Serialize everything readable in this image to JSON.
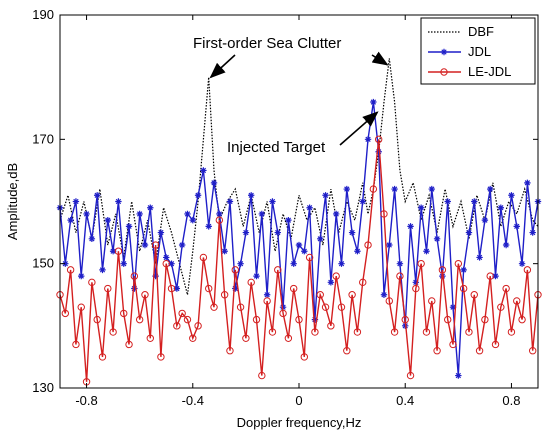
{
  "chart_data": {
    "type": "line",
    "xlabel": "Doppler frequency,Hz",
    "ylabel": "Amplitude,dB",
    "xlim": [
      -0.9,
      0.9
    ],
    "ylim": [
      130,
      190
    ],
    "xticks": [
      -0.8,
      -0.4,
      0,
      0.4,
      0.8
    ],
    "yticks": [
      130,
      150,
      170,
      190
    ],
    "xtick_labels": [
      "-0.8",
      "-0.4",
      "0",
      "0.4",
      "0.8"
    ],
    "ytick_labels": [
      "130",
      "150",
      "170",
      "190"
    ],
    "grid": false,
    "legend_position": "top-right",
    "annotations": [
      {
        "id": "sea-clutter",
        "text": "First-order Sea Clutter",
        "points_to": [
          [
            -0.34,
            179.5
          ],
          [
            0.34,
            182
          ]
        ]
      },
      {
        "id": "target",
        "text": "Injected Target",
        "points_to": [
          [
            0.28,
            175
          ]
        ]
      }
    ],
    "series": [
      {
        "name": "DBF",
        "color": "#000000",
        "style": "dotted",
        "x": [
          -0.9,
          -0.87,
          -0.84,
          -0.81,
          -0.78,
          -0.75,
          -0.72,
          -0.69,
          -0.66,
          -0.63,
          -0.6,
          -0.57,
          -0.54,
          -0.51,
          -0.48,
          -0.45,
          -0.42,
          -0.4,
          -0.38,
          -0.36,
          -0.34,
          -0.32,
          -0.3,
          -0.27,
          -0.24,
          -0.21,
          -0.18,
          -0.15,
          -0.12,
          -0.09,
          -0.06,
          -0.03,
          0.0,
          0.03,
          0.06,
          0.09,
          0.12,
          0.15,
          0.18,
          0.21,
          0.24,
          0.26,
          0.28,
          0.3,
          0.32,
          0.34,
          0.36,
          0.38,
          0.4,
          0.43,
          0.46,
          0.49,
          0.52,
          0.55,
          0.58,
          0.61,
          0.64,
          0.67,
          0.7,
          0.73,
          0.76,
          0.79,
          0.82,
          0.85,
          0.88,
          0.9
        ],
        "y": [
          157,
          161,
          155,
          160,
          154,
          162,
          153,
          158,
          151,
          160,
          152,
          157,
          150,
          159,
          155,
          150,
          145,
          152,
          160,
          170,
          180,
          165,
          157,
          160,
          162,
          156,
          161,
          155,
          160,
          152,
          158,
          154,
          161,
          157,
          159,
          153,
          162,
          155,
          160,
          157,
          163,
          158,
          162,
          168,
          176,
          183,
          176,
          165,
          160,
          163,
          157,
          161,
          155,
          162,
          156,
          160,
          154,
          161,
          157,
          163,
          156,
          160,
          158,
          162,
          157,
          156
        ]
      },
      {
        "name": "JDL",
        "color": "#1f1fc8",
        "style": "solid-star",
        "x": [
          -0.9,
          -0.88,
          -0.86,
          -0.84,
          -0.82,
          -0.8,
          -0.78,
          -0.76,
          -0.74,
          -0.72,
          -0.7,
          -0.68,
          -0.66,
          -0.64,
          -0.62,
          -0.6,
          -0.58,
          -0.56,
          -0.54,
          -0.52,
          -0.5,
          -0.48,
          -0.46,
          -0.44,
          -0.42,
          -0.4,
          -0.38,
          -0.36,
          -0.34,
          -0.32,
          -0.3,
          -0.28,
          -0.26,
          -0.24,
          -0.22,
          -0.2,
          -0.18,
          -0.16,
          -0.14,
          -0.12,
          -0.1,
          -0.08,
          -0.06,
          -0.04,
          -0.02,
          0.0,
          0.02,
          0.04,
          0.06,
          0.08,
          0.1,
          0.12,
          0.14,
          0.16,
          0.18,
          0.2,
          0.22,
          0.24,
          0.26,
          0.28,
          0.3,
          0.32,
          0.34,
          0.36,
          0.38,
          0.4,
          0.42,
          0.44,
          0.46,
          0.48,
          0.5,
          0.52,
          0.54,
          0.56,
          0.58,
          0.6,
          0.62,
          0.64,
          0.66,
          0.68,
          0.7,
          0.72,
          0.74,
          0.76,
          0.78,
          0.8,
          0.82,
          0.84,
          0.86,
          0.88,
          0.9
        ],
        "y": [
          159,
          150,
          157,
          160,
          148,
          158,
          154,
          161,
          149,
          157,
          152,
          160,
          150,
          156,
          146,
          158,
          153,
          159,
          148,
          155,
          151,
          150,
          146,
          153,
          158,
          157,
          161,
          165,
          156,
          163,
          158,
          152,
          160,
          146,
          150,
          155,
          161,
          148,
          158,
          145,
          160,
          155,
          143,
          157,
          150,
          153,
          152,
          159,
          141,
          154,
          161,
          147,
          158,
          150,
          162,
          155,
          152,
          160,
          170,
          176,
          168,
          145,
          153,
          162,
          150,
          140,
          156,
          147,
          159,
          152,
          162,
          154,
          148,
          160,
          143,
          132,
          149,
          155,
          160,
          151,
          157,
          162,
          148,
          159,
          153,
          161,
          156,
          150,
          163,
          155,
          160
        ]
      },
      {
        "name": "LE-JDL",
        "color": "#d42020",
        "style": "solid-circle",
        "x": [
          -0.9,
          -0.88,
          -0.86,
          -0.84,
          -0.82,
          -0.8,
          -0.78,
          -0.76,
          -0.74,
          -0.72,
          -0.7,
          -0.68,
          -0.66,
          -0.64,
          -0.62,
          -0.6,
          -0.58,
          -0.56,
          -0.54,
          -0.52,
          -0.5,
          -0.48,
          -0.46,
          -0.44,
          -0.42,
          -0.4,
          -0.38,
          -0.36,
          -0.34,
          -0.32,
          -0.3,
          -0.28,
          -0.26,
          -0.24,
          -0.22,
          -0.2,
          -0.18,
          -0.16,
          -0.14,
          -0.12,
          -0.1,
          -0.08,
          -0.06,
          -0.04,
          -0.02,
          0.0,
          0.02,
          0.04,
          0.06,
          0.08,
          0.1,
          0.12,
          0.14,
          0.16,
          0.18,
          0.2,
          0.22,
          0.24,
          0.26,
          0.28,
          0.3,
          0.32,
          0.34,
          0.36,
          0.38,
          0.4,
          0.42,
          0.44,
          0.46,
          0.48,
          0.5,
          0.52,
          0.54,
          0.56,
          0.58,
          0.6,
          0.62,
          0.64,
          0.66,
          0.68,
          0.7,
          0.72,
          0.74,
          0.76,
          0.78,
          0.8,
          0.82,
          0.84,
          0.86,
          0.88,
          0.9
        ],
        "y": [
          145,
          142,
          149,
          137,
          143,
          131,
          147,
          141,
          135,
          146,
          139,
          152,
          142,
          137,
          148,
          141,
          145,
          138,
          153,
          135,
          150,
          146,
          140,
          142,
          141,
          138,
          140,
          151,
          146,
          143,
          157,
          145,
          136,
          149,
          143,
          138,
          147,
          141,
          132,
          144,
          139,
          149,
          142,
          138,
          146,
          141,
          135,
          151,
          139,
          145,
          143,
          140,
          148,
          143,
          136,
          145,
          139,
          147,
          153,
          162,
          170,
          158,
          144,
          139,
          148,
          141,
          132,
          146,
          150,
          139,
          144,
          136,
          149,
          141,
          137,
          150,
          146,
          139,
          145,
          136,
          141,
          148,
          137,
          143,
          146,
          139,
          144,
          141,
          149,
          136,
          145
        ]
      }
    ]
  }
}
